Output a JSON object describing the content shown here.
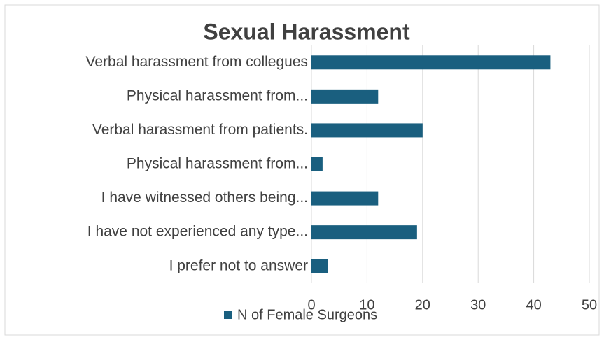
{
  "chart_data": {
    "type": "bar",
    "orientation": "horizontal",
    "title": "Sexual Harassment",
    "categories": [
      "Verbal harassment from collegues",
      "Physical harassment from...",
      "Verbal harassment from patients.",
      "Physical harassment from...",
      "I have witnessed others being...",
      "I have not experienced any type...",
      "I prefer not to answer"
    ],
    "series": [
      {
        "name": "N of Female Surgeons",
        "color": "#1a5f7f",
        "values": [
          43,
          12,
          20,
          2,
          12,
          19,
          3
        ]
      }
    ],
    "xlim": [
      0,
      50
    ],
    "xticks": [
      0,
      10,
      20,
      30,
      40,
      50
    ],
    "grid": true,
    "legend": "bottom"
  }
}
